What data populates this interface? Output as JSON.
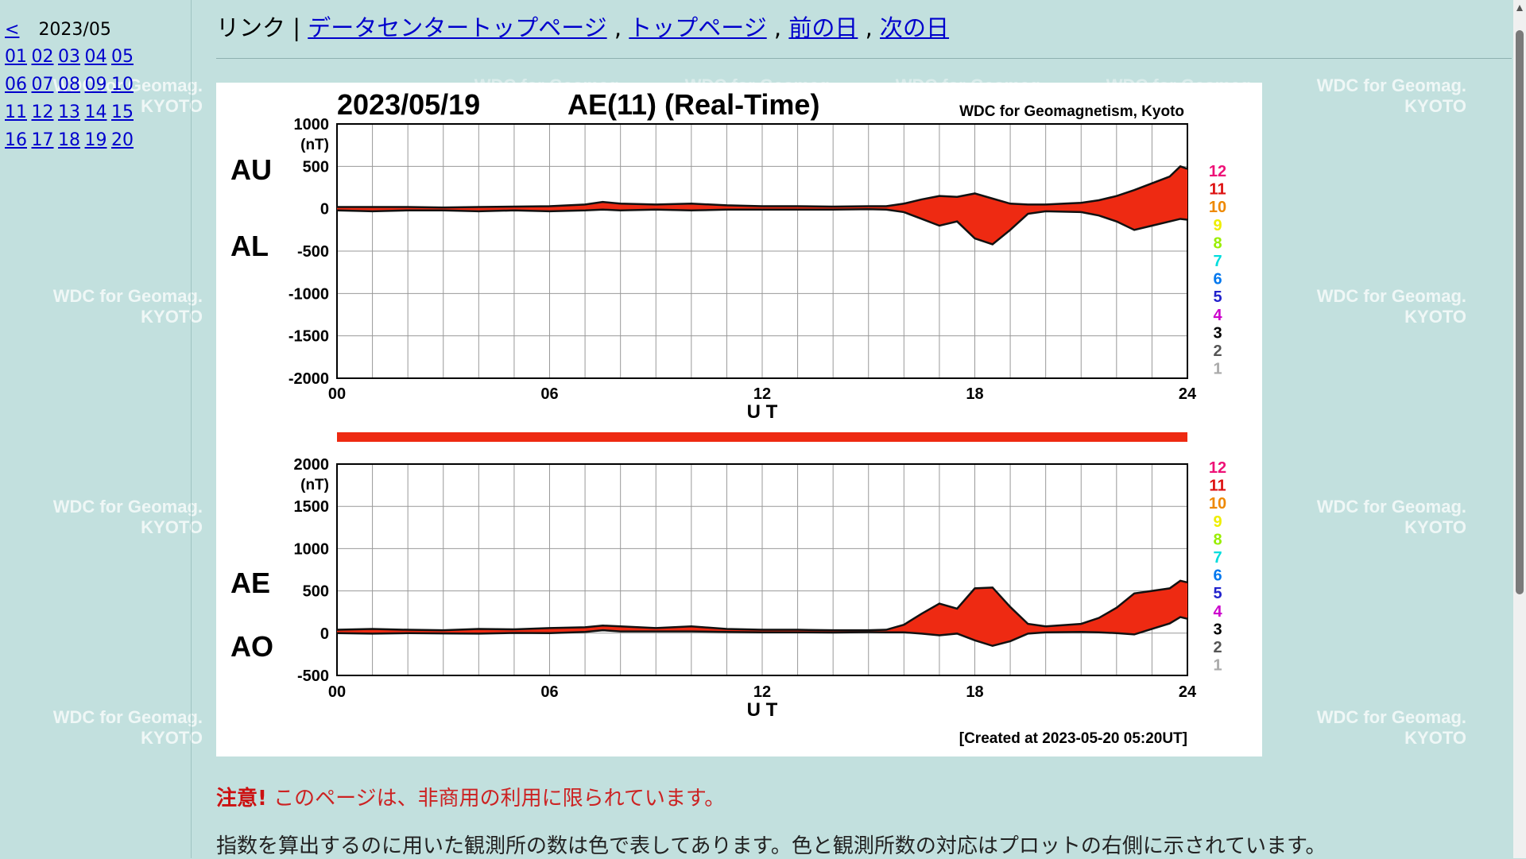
{
  "watermark": {
    "line1": "WDC for Geomag.",
    "line2": "KYOTO"
  },
  "sidebar": {
    "prev": "<",
    "month": "2023/05",
    "days": [
      "01",
      "02",
      "03",
      "04",
      "05",
      "06",
      "07",
      "08",
      "09",
      "10",
      "11",
      "12",
      "13",
      "14",
      "15",
      "16",
      "17",
      "18",
      "19",
      "20"
    ]
  },
  "nav": {
    "prefix": "リンク | ",
    "links": [
      "データセンタートップページ",
      "トップページ",
      "前の日",
      "次の日"
    ],
    "sep": " , "
  },
  "plot": {
    "date": "2023/05/19",
    "title": "AE(11) (Real-Time)",
    "credit": "WDC for Geomagnetism, Kyoto",
    "created": "[Created at 2023-05-20 05:20UT]",
    "xlabel": "U T",
    "upper_labels": [
      "AU",
      "AL"
    ],
    "lower_labels": [
      "AE",
      "AO"
    ],
    "unit": "(nT)",
    "station_scale": [
      {
        "n": "12",
        "color": "#ee1177"
      },
      {
        "n": "11",
        "color": "#dd1111"
      },
      {
        "n": "10",
        "color": "#ee8800"
      },
      {
        "n": "9",
        "color": "#eeee00"
      },
      {
        "n": "8",
        "color": "#99ee00"
      },
      {
        "n": "7",
        "color": "#00dddd"
      },
      {
        "n": "6",
        "color": "#0077ee"
      },
      {
        "n": "5",
        "color": "#2222cc"
      },
      {
        "n": "4",
        "color": "#cc00cc"
      },
      {
        "n": "3",
        "color": "#000000"
      },
      {
        "n": "2",
        "color": "#555555"
      },
      {
        "n": "1",
        "color": "#aaaaaa"
      }
    ]
  },
  "chart_data": [
    {
      "type": "area",
      "title": "AE(11) (Real-Time)",
      "xlabel": "U T",
      "ylabel": "(nT)",
      "xlim": [
        0,
        24
      ],
      "ylim": [
        -2000,
        1000
      ],
      "xticks": [
        "00",
        "06",
        "12",
        "18",
        "24"
      ],
      "yticks": [
        1000,
        500,
        0,
        -500,
        -1000,
        -1500,
        -2000
      ],
      "series": [
        {
          "name": "AU",
          "x": [
            0,
            1,
            2,
            3,
            4,
            5,
            6,
            7,
            7.5,
            8,
            9,
            10,
            11,
            12,
            13,
            14,
            15,
            15.5,
            16,
            16.5,
            17,
            17.5,
            18,
            18.5,
            19,
            19.5,
            20,
            21,
            21.5,
            22,
            22.5,
            23,
            23.5,
            23.8,
            24
          ],
          "values": [
            20,
            20,
            20,
            15,
            20,
            25,
            30,
            50,
            80,
            60,
            50,
            60,
            40,
            30,
            30,
            25,
            30,
            30,
            60,
            110,
            150,
            140,
            180,
            120,
            60,
            50,
            50,
            70,
            100,
            150,
            220,
            300,
            380,
            500,
            470
          ]
        },
        {
          "name": "AL",
          "x": [
            0,
            1,
            2,
            3,
            4,
            5,
            6,
            7,
            7.5,
            8,
            9,
            10,
            11,
            12,
            13,
            14,
            15,
            15.5,
            16,
            16.5,
            17,
            17.5,
            18,
            18.5,
            19,
            19.5,
            20,
            21,
            21.5,
            22,
            22.5,
            23,
            23.5,
            23.8,
            24
          ],
          "values": [
            -20,
            -30,
            -20,
            -20,
            -30,
            -20,
            -30,
            -20,
            -10,
            -20,
            -10,
            -20,
            -10,
            -10,
            -10,
            -10,
            -5,
            -10,
            -40,
            -120,
            -200,
            -150,
            -350,
            -420,
            -250,
            -60,
            -30,
            -40,
            -80,
            -150,
            -250,
            -200,
            -150,
            -120,
            -130
          ]
        }
      ]
    },
    {
      "type": "area",
      "title": "AE(11) (Real-Time)",
      "xlabel": "U T",
      "ylabel": "(nT)",
      "xlim": [
        0,
        24
      ],
      "ylim": [
        -500,
        2000
      ],
      "xticks": [
        "00",
        "06",
        "12",
        "18",
        "24"
      ],
      "yticks": [
        2000,
        1500,
        1000,
        500,
        0,
        -500
      ],
      "series": [
        {
          "name": "AE",
          "x": [
            0,
            1,
            2,
            3,
            4,
            5,
            6,
            7,
            7.5,
            8,
            9,
            10,
            11,
            12,
            13,
            14,
            15,
            15.5,
            16,
            16.5,
            17,
            17.5,
            18,
            18.5,
            19,
            19.5,
            20,
            21,
            21.5,
            22,
            22.5,
            23,
            23.5,
            23.8,
            24
          ],
          "values": [
            40,
            50,
            40,
            35,
            50,
            45,
            60,
            70,
            90,
            80,
            60,
            80,
            50,
            40,
            40,
            35,
            35,
            40,
            100,
            230,
            350,
            290,
            530,
            540,
            310,
            110,
            80,
            110,
            180,
            300,
            470,
            500,
            530,
            620,
            600
          ]
        },
        {
          "name": "AO",
          "x": [
            0,
            1,
            2,
            3,
            4,
            5,
            6,
            7,
            7.5,
            8,
            9,
            10,
            11,
            12,
            13,
            14,
            15,
            15.5,
            16,
            16.5,
            17,
            17.5,
            18,
            18.5,
            19,
            19.5,
            20,
            21,
            21.5,
            22,
            22.5,
            23,
            23.5,
            23.8,
            24
          ],
          "values": [
            0,
            -5,
            0,
            -3,
            -5,
            3,
            0,
            15,
            35,
            20,
            20,
            20,
            15,
            10,
            10,
            8,
            12,
            10,
            10,
            -5,
            -25,
            -5,
            -85,
            -150,
            -95,
            -5,
            10,
            15,
            10,
            0,
            -15,
            50,
            115,
            190,
            170
          ]
        }
      ]
    }
  ],
  "station_bar_note": "",
  "notice": {
    "strong": "注意!",
    "text": " このページは、非商用の利用に限られています。"
  },
  "description": "指数を算出するのに用いた観測所の数は色で表してあります。色と観測所数の対応はプロットの右側に示されています。"
}
